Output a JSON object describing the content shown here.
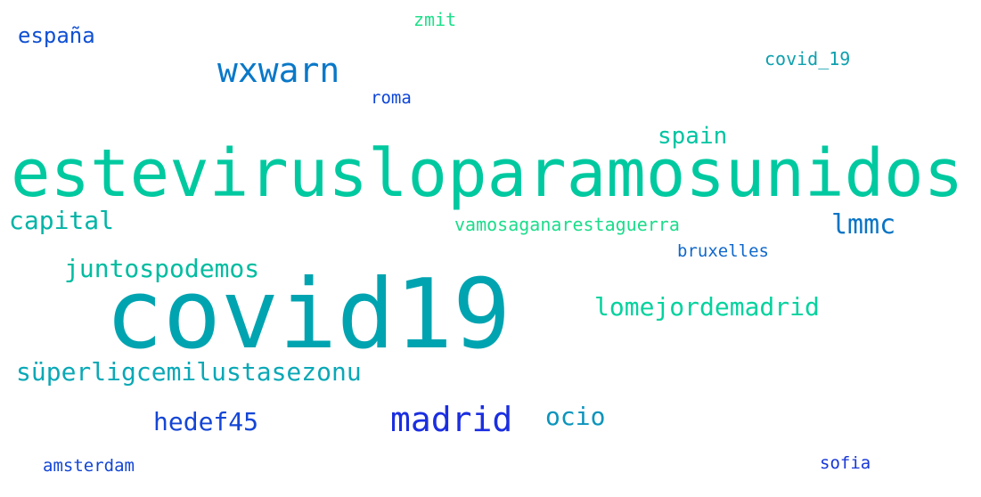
{
  "word_cloud": {
    "words": {
      "estevirusloparamosunidos": "estevirusloparamosunidos",
      "covid19": "covid19",
      "wxwarn": "wxwarn",
      "espana": "españa",
      "zmit": "zmit",
      "covid_19": "covid_19",
      "roma": "roma",
      "spain": "spain",
      "capital": "capital",
      "vamosaganarestaguerra": "vamosaganarestaguerra",
      "lmmc": "lmmc",
      "bruxelles": "bruxelles",
      "juntospodemos": "juntospodemos",
      "lomejordemadrid": "lomejordemadrid",
      "superligcemilustasezonu": "süperligcemilustasezonu",
      "madrid": "madrid",
      "ocio": "ocio",
      "hedef45": "hedef45",
      "amsterdam": "amsterdam",
      "sofia": "sofia"
    }
  }
}
